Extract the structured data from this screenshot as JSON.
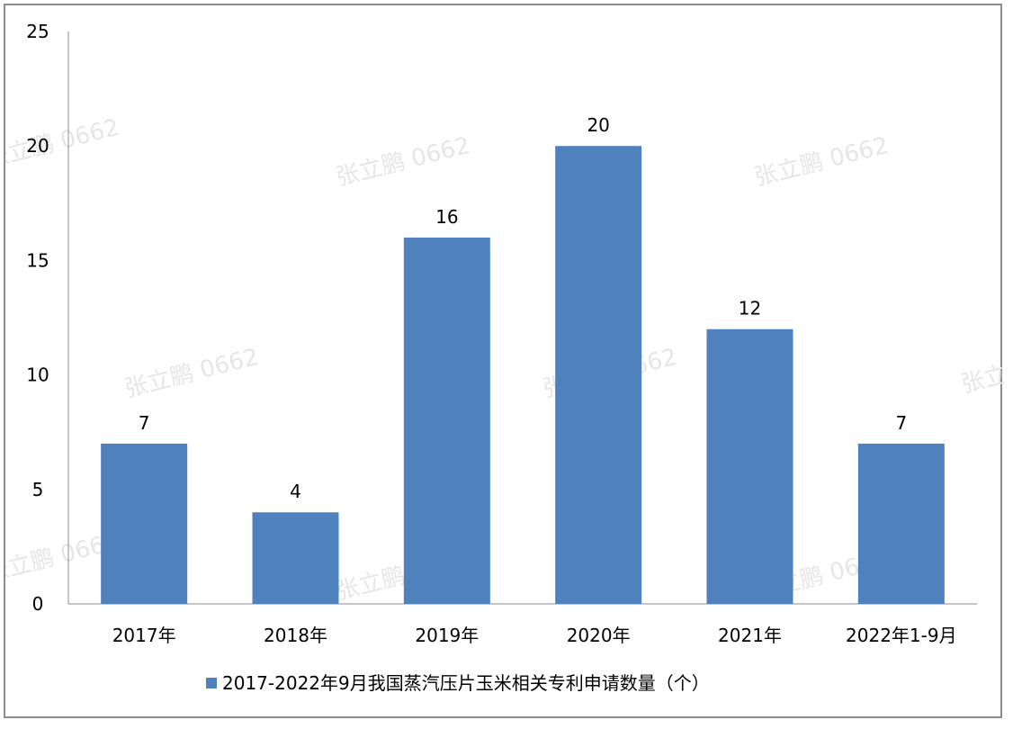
{
  "chart_data": {
    "type": "bar",
    "title": "",
    "xlabel": "",
    "ylabel": "",
    "categories": [
      "2017年",
      "2018年",
      "2019年",
      "2020年",
      "2021年",
      "2022年1-9月"
    ],
    "series": [
      {
        "name": "2017-2022年9月我国蒸汽压片玉米相关专利申请数量（个）",
        "values": [
          7,
          4,
          16,
          20,
          12,
          7
        ],
        "color": "#4f81bd"
      }
    ],
    "ylim": [
      0,
      25
    ],
    "yticks": [
      0,
      5,
      10,
      15,
      20,
      25
    ],
    "grid": false,
    "legend": "bottom",
    "data_labels": true
  },
  "watermark": {
    "text": "张立鹏 0662"
  }
}
